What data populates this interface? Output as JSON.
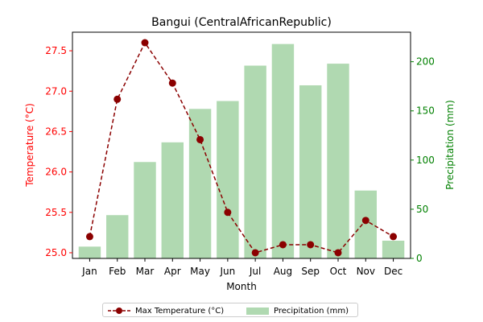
{
  "chart_data": {
    "type": "bar+line",
    "title": "Bangui (CentralAfricanRepublic)",
    "xlabel": "Month",
    "categories": [
      "Jan",
      "Feb",
      "Mar",
      "Apr",
      "May",
      "Jun",
      "Jul",
      "Aug",
      "Sep",
      "Oct",
      "Nov",
      "Dec"
    ],
    "left_axis": {
      "label": "Temperature (°C)",
      "color": "#ff0000",
      "ylim": [
        24.93,
        27.73
      ],
      "ticks": [
        "25.0",
        "25.5",
        "26.0",
        "26.5",
        "27.0",
        "27.5"
      ]
    },
    "right_axis": {
      "label": "Precipitation (mm)",
      "color": "#008000",
      "ylim": [
        0,
        230
      ],
      "ticks": [
        "0",
        "50",
        "100",
        "150",
        "200"
      ]
    },
    "series": [
      {
        "name": "Max Temperature (°C)",
        "type": "line",
        "axis": "left",
        "color": "#8b0000",
        "values": [
          25.2,
          26.9,
          27.6,
          27.1,
          26.4,
          25.5,
          25.0,
          25.1,
          25.1,
          25.0,
          25.4,
          25.2
        ]
      },
      {
        "name": "Precipitation (mm)",
        "type": "bar",
        "axis": "right",
        "color": "#b0d9b1",
        "values": [
          12,
          44,
          98,
          118,
          152,
          160,
          196,
          218,
          176,
          198,
          69,
          18
        ]
      }
    ],
    "legend_position": "bottom-center",
    "grid": false
  }
}
